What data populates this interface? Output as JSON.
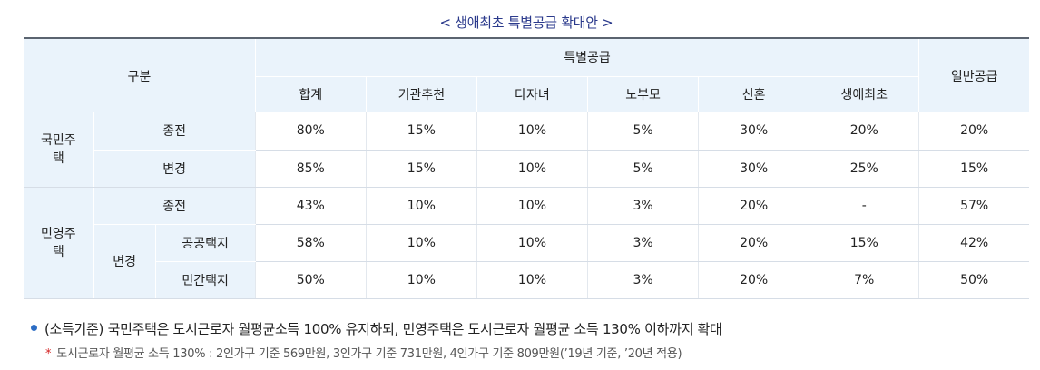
{
  "title": "< 생애최초 특별공급 확대안 >",
  "header": {
    "gubun": "구분",
    "special": "특별공급",
    "general": "일반공급",
    "columns": [
      "합계",
      "기관추천",
      "다자녀",
      "노부모",
      "신혼",
      "생애최초"
    ]
  },
  "sections": {
    "public": {
      "label": "국민주택",
      "rows": [
        {
          "label": "종전",
          "values": [
            "80%",
            "15%",
            "10%",
            "5%",
            "30%",
            "20%",
            "20%"
          ]
        },
        {
          "label": "변경",
          "values": [
            "85%",
            "15%",
            "10%",
            "5%",
            "30%",
            "25%",
            "15%"
          ]
        }
      ]
    },
    "private": {
      "label": "민영주택",
      "before": {
        "label": "종전",
        "values": [
          "43%",
          "10%",
          "10%",
          "3%",
          "20%",
          "-",
          "57%"
        ]
      },
      "change_label": "변경",
      "after": [
        {
          "label": "공공택지",
          "values": [
            "58%",
            "10%",
            "10%",
            "3%",
            "20%",
            "15%",
            "42%"
          ]
        },
        {
          "label": "민간택지",
          "values": [
            "50%",
            "10%",
            "10%",
            "3%",
            "20%",
            "7%",
            "50%"
          ]
        }
      ]
    }
  },
  "notes": {
    "main": "(소득기준) 국민주택은 도시근로자 월평균소득 100% 유지하되, 민영주택은 도시근로자 월평균 소득 130% 이하까지 확대",
    "sub_marker": "*",
    "sub": "도시근로자 월평균 소득 130% : 2인가구 기준 569만원, 3인가구 기준 731만원, 4인가구 기준 809만원(’19년 기준, ’20년 적용)"
  },
  "colors": {
    "title": "#2b3a8c",
    "header_bg": "#eaf3fb",
    "bullet": "#2b6cc4",
    "note_marker": "#d32020"
  }
}
